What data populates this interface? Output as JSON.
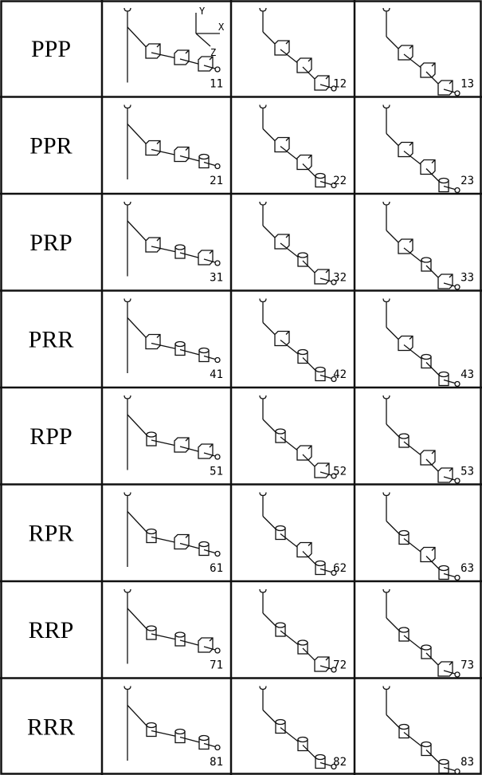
{
  "axes": [
    "Y",
    "X",
    "Z"
  ],
  "table": {
    "rows": [
      {
        "label": "PPP",
        "cells": [
          "11",
          "12",
          "13"
        ]
      },
      {
        "label": "PPR",
        "cells": [
          "21",
          "22",
          "23"
        ]
      },
      {
        "label": "PRP",
        "cells": [
          "31",
          "32",
          "33"
        ]
      },
      {
        "label": "PRR",
        "cells": [
          "41",
          "42",
          "43"
        ]
      },
      {
        "label": "RPP",
        "cells": [
          "51",
          "52",
          "53"
        ]
      },
      {
        "label": "RPR",
        "cells": [
          "61",
          "62",
          "63"
        ]
      },
      {
        "label": "RRP",
        "cells": [
          "71",
          "72",
          "73"
        ]
      },
      {
        "label": "RRR",
        "cells": [
          "81",
          "82",
          "83"
        ]
      }
    ]
  }
}
